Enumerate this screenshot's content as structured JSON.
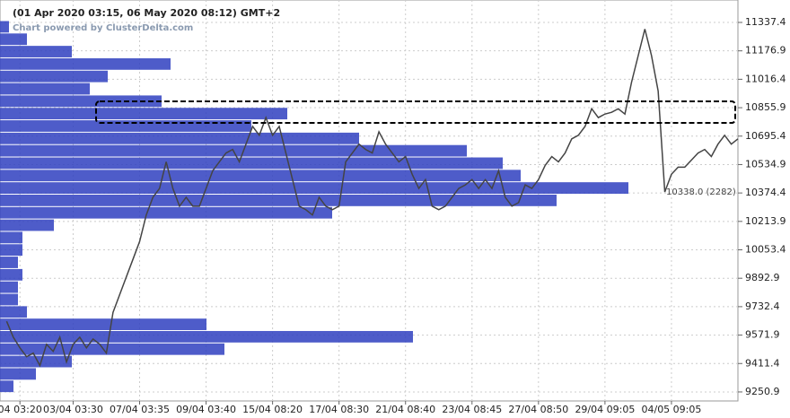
{
  "chart_data": {
    "type": "line",
    "title": "(01 Apr 2020 03:15, 06 May 2020 08:12) GMT+2",
    "subtitle": "Chart powered by ClusterDelta.com",
    "annotation": "10338.0 (2282)",
    "xlim": [
      0,
      111
    ],
    "ylim": [
      9200,
      11464
    ],
    "xticks": [
      {
        "value": 3,
        "label": "04 03:20"
      },
      {
        "value": 11,
        "label": "03/04 03:30"
      },
      {
        "value": 21,
        "label": "07/04 03:35"
      },
      {
        "value": 31,
        "label": "09/04 03:40"
      },
      {
        "value": 41,
        "label": "15/04 08:20"
      },
      {
        "value": 51,
        "label": "17/04 08:30"
      },
      {
        "value": 61,
        "label": "21/04 08:40"
      },
      {
        "value": 71,
        "label": "23/04 08:45"
      },
      {
        "value": 81,
        "label": "27/04 08:50"
      },
      {
        "value": 91,
        "label": "29/04 09:05"
      },
      {
        "value": 101,
        "label": "04/05 09:05"
      }
    ],
    "yticks": [
      11337.4,
      11176.9,
      11016.4,
      10855.9,
      10695.4,
      10534.9,
      10374.4,
      10213.9,
      10053.4,
      9892.9,
      9732.4,
      9571.9,
      9411.4,
      9250.9
    ],
    "grid": true,
    "series": [
      {
        "color": "#444444",
        "x": [
          1,
          2,
          3,
          4,
          5,
          6,
          7,
          8,
          9,
          10,
          11,
          12,
          13,
          14,
          15,
          16,
          17,
          18,
          19,
          20,
          21,
          22,
          23,
          24,
          25,
          26,
          27,
          28,
          29,
          30,
          31,
          32,
          33,
          34,
          35,
          36,
          37,
          38,
          39,
          40,
          41,
          42,
          43,
          44,
          45,
          46,
          47,
          48,
          49,
          50,
          51,
          52,
          53,
          54,
          55,
          56,
          57,
          58,
          59,
          60,
          61,
          62,
          63,
          64,
          65,
          66,
          67,
          68,
          69,
          70,
          71,
          72,
          73,
          74,
          75,
          76,
          77,
          78,
          79,
          80,
          81,
          82,
          83,
          84,
          85,
          86,
          87,
          88,
          89,
          90,
          91,
          92,
          93,
          94,
          95,
          96,
          97,
          98,
          99,
          100,
          101,
          102,
          103,
          104,
          105,
          106,
          107,
          108,
          109,
          110,
          111
        ],
        "values": [
          9650,
          9560,
          9500,
          9450,
          9470,
          9400,
          9520,
          9480,
          9560,
          9420,
          9520,
          9560,
          9500,
          9550,
          9520,
          9470,
          9700,
          9800,
          9900,
          10000,
          10100,
          10250,
          10350,
          10400,
          10550,
          10400,
          10300,
          10350,
          10300,
          10300,
          10400,
          10500,
          10550,
          10600,
          10620,
          10550,
          10650,
          10750,
          10700,
          10800,
          10700,
          10750,
          10600,
          10450,
          10300,
          10280,
          10250,
          10350,
          10300,
          10280,
          10300,
          10550,
          10600,
          10650,
          10620,
          10600,
          10720,
          10650,
          10600,
          10550,
          10580,
          10480,
          10400,
          10450,
          10300,
          10280,
          10300,
          10350,
          10400,
          10420,
          10450,
          10400,
          10450,
          10400,
          10500,
          10350,
          10300,
          10320,
          10420,
          10400,
          10450,
          10530,
          10580,
          10550,
          10600,
          10680,
          10700,
          10750,
          10850,
          10800,
          10820,
          10830,
          10850,
          10820,
          11000,
          11150,
          11300,
          11150,
          10950,
          10380,
          10480,
          10520,
          10520,
          10560,
          10600,
          10620,
          10580,
          10650,
          10700,
          10650,
          10680
        ]
      }
    ],
    "profile": {
      "color": "#2f40c0",
      "levels": [
        9280,
        9350,
        9420,
        9490,
        9560,
        9630,
        9700,
        9770,
        9840,
        9910,
        9980,
        10050,
        10120,
        10190,
        10260,
        10330,
        10400,
        10470,
        10540,
        10610,
        10680,
        10750,
        10820,
        10890,
        10960,
        11030,
        11100,
        11170,
        11240,
        11310
      ],
      "values": [
        15,
        40,
        80,
        250,
        460,
        230,
        30,
        20,
        20,
        25,
        20,
        25,
        25,
        60,
        370,
        620,
        700,
        580,
        560,
        520,
        400,
        280,
        320,
        180,
        100,
        120,
        190,
        80,
        30,
        10
      ]
    }
  }
}
